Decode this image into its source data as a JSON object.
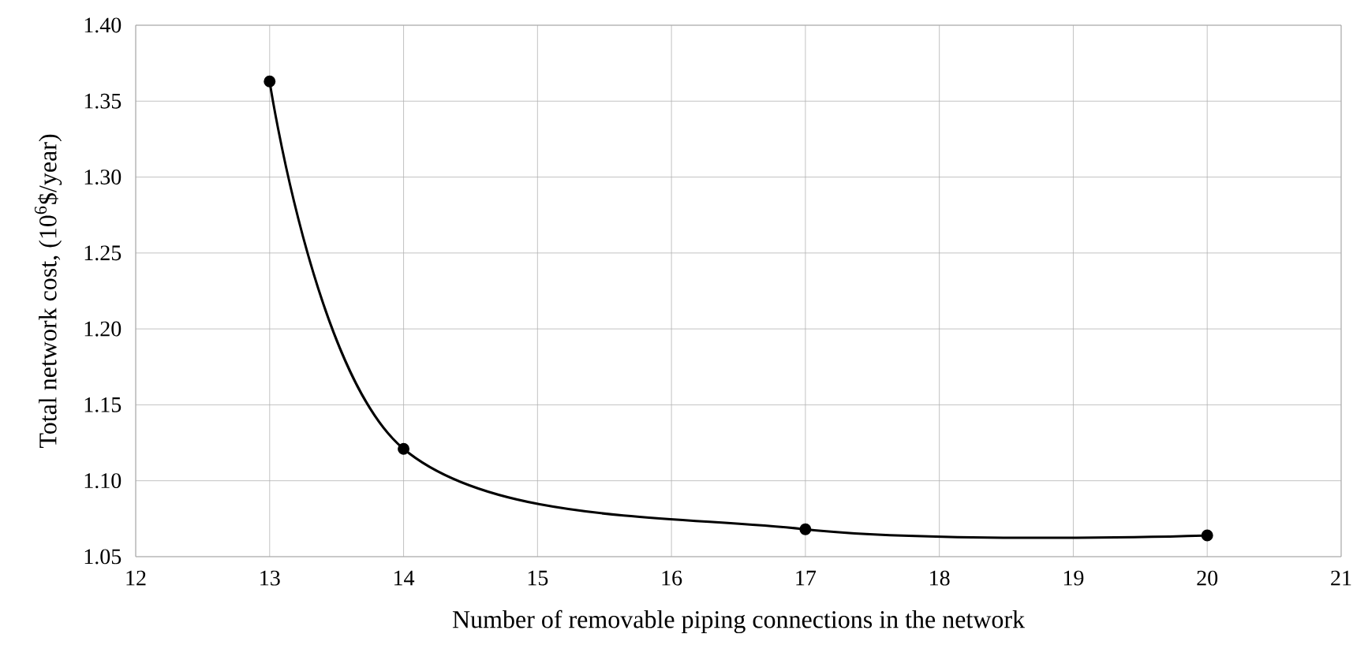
{
  "chart_data": {
    "type": "line",
    "xlabel": "Number of removable piping connections in the network",
    "ylabel": "Total network cost, (10$^{6}$$/year)",
    "x": [
      13,
      14,
      17,
      20
    ],
    "series": [
      {
        "color": "#000000",
        "values": [
          1.363,
          1.121,
          1.068,
          1.064
        ]
      }
    ],
    "xlim": [
      12,
      21
    ],
    "xticks": [
      12,
      13,
      14,
      15,
      16,
      17,
      18,
      19,
      20,
      21
    ],
    "ylim": [
      1.05,
      1.4
    ],
    "yticks": [
      {
        "value": 1.05,
        "label": "1.05"
      },
      {
        "value": 1.1,
        "label": "1.10"
      },
      {
        "value": 1.15,
        "label": "1.15"
      },
      {
        "value": 1.2,
        "label": "1.20"
      },
      {
        "value": 1.25,
        "label": "1.25"
      },
      {
        "value": 1.3,
        "label": "1.30"
      },
      {
        "value": 1.35,
        "label": "1.35"
      },
      {
        "value": 1.4,
        "label": "1.40"
      }
    ],
    "grid": true,
    "marker": "circle",
    "line_style": "solid"
  }
}
